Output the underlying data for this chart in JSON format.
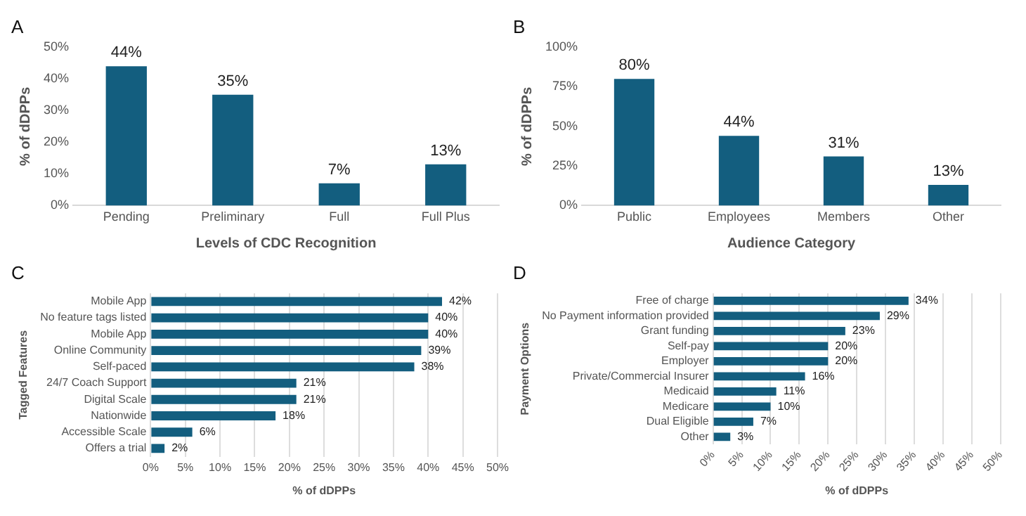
{
  "chart_data": [
    {
      "type": "bar",
      "title": "A",
      "categories": [
        "Pending",
        "Preliminary",
        "Full",
        "Full Plus"
      ],
      "values": [
        44,
        35,
        7,
        13
      ],
      "value_labels": [
        "44%",
        "35%",
        "7%",
        "13%"
      ],
      "color": "#135e7f",
      "xlabel": "Levels of CDC Recognition",
      "ylabel": "% of dDPPs",
      "ylim": [
        0,
        50
      ],
      "yticks": [
        {
          "value": 0,
          "label": "0%"
        },
        {
          "value": 10,
          "label": "10%"
        },
        {
          "value": 20,
          "label": "20%"
        },
        {
          "value": 30,
          "label": "30%"
        },
        {
          "value": 40,
          "label": "40%"
        },
        {
          "value": 50,
          "label": "50%"
        }
      ],
      "grid": false
    },
    {
      "type": "bar",
      "title": "B",
      "categories": [
        "Public",
        "Employees",
        "Members",
        "Other"
      ],
      "values": [
        80,
        44,
        31,
        13
      ],
      "value_labels": [
        "80%",
        "44%",
        "31%",
        "13%"
      ],
      "color": "#135e7f",
      "xlabel": "Audience Category",
      "ylabel": "% of dDPPs",
      "ylim": [
        0,
        100
      ],
      "yticks": [
        {
          "value": 0,
          "label": "0%"
        },
        {
          "value": 25,
          "label": "25%"
        },
        {
          "value": 50,
          "label": "50%"
        },
        {
          "value": 75,
          "label": "75%"
        },
        {
          "value": 100,
          "label": "100%"
        }
      ],
      "grid": false
    },
    {
      "type": "bar",
      "orientation": "horizontal",
      "title": "C",
      "categories": [
        "Mobile App",
        "No feature tags listed",
        "Mobile App",
        "Online Community",
        "Self-paced",
        "24/7 Coach Support",
        "Digital Scale",
        "Nationwide",
        "Accessible Scale",
        "Offers a trial"
      ],
      "values": [
        42,
        40,
        40,
        39,
        38,
        21,
        21,
        18,
        6,
        2
      ],
      "value_labels": [
        "42%",
        "40%",
        "40%",
        "39%",
        "38%",
        "21%",
        "21%",
        "18%",
        "6%",
        "2%"
      ],
      "color": "#135e7f",
      "xlabel": "% of dDPPs",
      "ylabel": "Tagged Features",
      "xlim": [
        0,
        50
      ],
      "xticks": [
        {
          "value": 0,
          "label": "0%"
        },
        {
          "value": 5,
          "label": "5%"
        },
        {
          "value": 10,
          "label": "10%"
        },
        {
          "value": 15,
          "label": "15%"
        },
        {
          "value": 20,
          "label": "20%"
        },
        {
          "value": 25,
          "label": "25%"
        },
        {
          "value": 30,
          "label": "30%"
        },
        {
          "value": 35,
          "label": "35%"
        },
        {
          "value": 40,
          "label": "40%"
        },
        {
          "value": 45,
          "label": "45%"
        },
        {
          "value": 50,
          "label": "50%"
        }
      ],
      "grid": "x"
    },
    {
      "type": "bar",
      "orientation": "horizontal",
      "title": "D",
      "categories": [
        "Free of charge",
        "No Payment information provided",
        "Grant funding",
        "Self-pay",
        "Employer",
        "Private/Commercial Insurer",
        "Medicaid",
        "Medicare",
        "Dual Eligible",
        "Other"
      ],
      "values": [
        34,
        29,
        23,
        20,
        20,
        16,
        11,
        10,
        7,
        3
      ],
      "value_labels": [
        "34%",
        "29%",
        "23%",
        "20%",
        "20%",
        "16%",
        "11%",
        "10%",
        "7%",
        "3%"
      ],
      "color": "#135e7f",
      "xlabel": "% of dDPPs",
      "ylabel": "Payment Options",
      "xlim": [
        0,
        50
      ],
      "xticks": [
        {
          "value": 0,
          "label": "0%"
        },
        {
          "value": 5,
          "label": "5%"
        },
        {
          "value": 10,
          "label": "10%"
        },
        {
          "value": 15,
          "label": "15%"
        },
        {
          "value": 20,
          "label": "20%"
        },
        {
          "value": 25,
          "label": "25%"
        },
        {
          "value": 30,
          "label": "30%"
        },
        {
          "value": 35,
          "label": "35%"
        },
        {
          "value": 40,
          "label": "40%"
        },
        {
          "value": 45,
          "label": "45%"
        },
        {
          "value": 50,
          "label": "50%"
        }
      ],
      "grid": "x"
    }
  ]
}
